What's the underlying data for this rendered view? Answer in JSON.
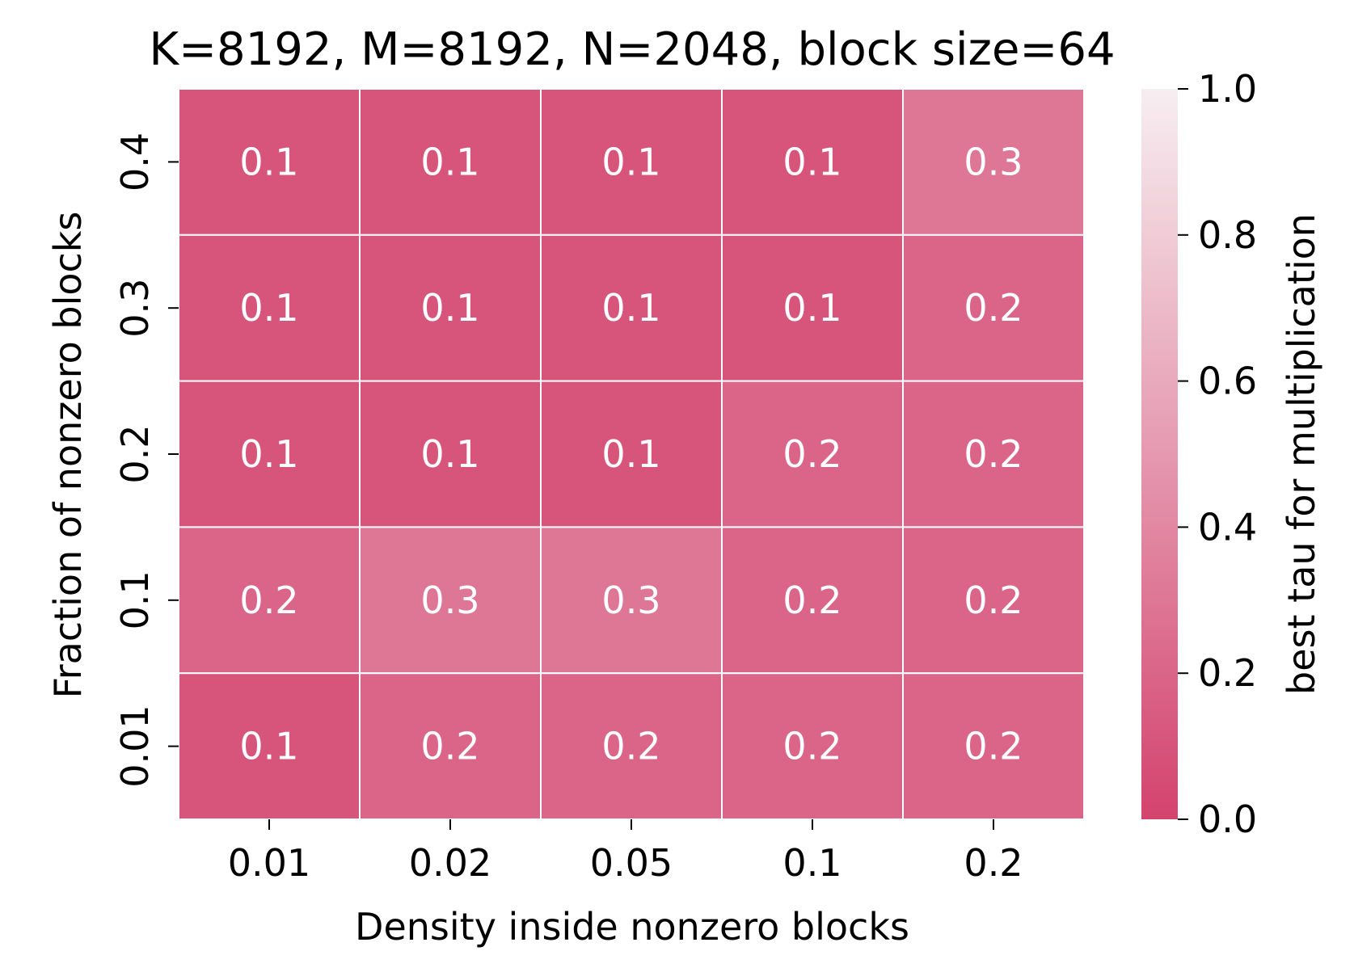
{
  "chart_data": {
    "type": "heatmap",
    "title": "K=8192, M=8192, N=2048, block size=64",
    "xlabel": "Density inside nonzero blocks",
    "ylabel": "Fraction of nonzero blocks",
    "x_categories": [
      "0.01",
      "0.02",
      "0.05",
      "0.1",
      "0.2"
    ],
    "y_categories": [
      "0.4",
      "0.3",
      "0.2",
      "0.1",
      "0.01"
    ],
    "values": [
      [
        0.1,
        0.1,
        0.1,
        0.1,
        0.3
      ],
      [
        0.1,
        0.1,
        0.1,
        0.1,
        0.2
      ],
      [
        0.1,
        0.1,
        0.1,
        0.2,
        0.2
      ],
      [
        0.2,
        0.3,
        0.3,
        0.2,
        0.2
      ],
      [
        0.1,
        0.2,
        0.2,
        0.2,
        0.2
      ]
    ],
    "colorbar": {
      "label": "best tau for multiplication",
      "min": 0.0,
      "max": 1.0,
      "ticks": [
        "0.0",
        "0.2",
        "0.4",
        "0.6",
        "0.8",
        "1.0"
      ],
      "color_low": "#d3436e",
      "color_high": "#f7eef1"
    },
    "annotation_color": "#ffffff",
    "cell_separator_color": "#ffffff"
  }
}
